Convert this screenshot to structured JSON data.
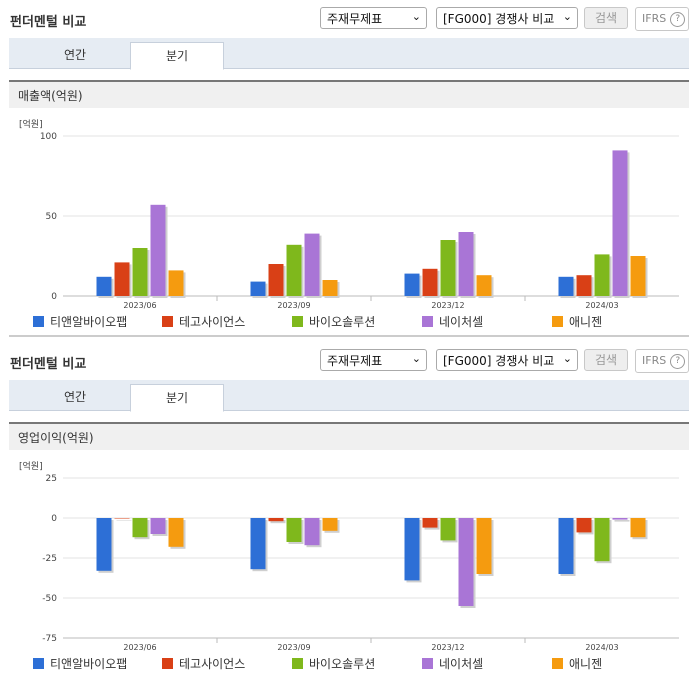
{
  "panels": [
    {
      "title": "펀더멘털 비교",
      "select1": "주재무제표",
      "select2": "[FG000] 경쟁사 비교",
      "search_label": "검색",
      "ifrs_label": "IFRS",
      "tabs": [
        {
          "label": "연간"
        },
        {
          "label": "분기"
        }
      ],
      "metric_label": "매출액(억원)"
    },
    {
      "title": "펀더멘털 비교",
      "select1": "주재무제표",
      "select2": "[FG000] 경쟁사 비교",
      "search_label": "검색",
      "ifrs_label": "IFRS",
      "tabs": [
        {
          "label": "연간"
        },
        {
          "label": "분기"
        }
      ],
      "metric_label": "영업이익(억원)"
    }
  ],
  "colors": [
    "#2d6fd6",
    "#d94016",
    "#7fb81c",
    "#a975d6",
    "#f59b0f"
  ],
  "chart_data": [
    {
      "type": "bar",
      "unit_label": "[억원]",
      "categories": [
        "2023/06",
        "2023/09",
        "2023/12",
        "2024/03"
      ],
      "ylim": [
        0,
        100
      ],
      "yticks": [
        0,
        50,
        100
      ],
      "series": [
        {
          "name": "티앤알바이오팹",
          "values": [
            12,
            9,
            14,
            12
          ]
        },
        {
          "name": "테고사이언스",
          "values": [
            21,
            20,
            17,
            13
          ]
        },
        {
          "name": "바이오솔루션",
          "values": [
            30,
            32,
            35,
            26
          ]
        },
        {
          "name": "네이처셀",
          "values": [
            57,
            39,
            40,
            91
          ]
        },
        {
          "name": "애니젠",
          "values": [
            16,
            10,
            13,
            25
          ]
        }
      ]
    },
    {
      "type": "bar",
      "unit_label": "[억원]",
      "categories": [
        "2023/06",
        "2023/09",
        "2023/12",
        "2024/03"
      ],
      "ylim": [
        -75,
        25
      ],
      "yticks": [
        25,
        0,
        -25,
        -50,
        -75
      ],
      "series": [
        {
          "name": "티앤알바이오팹",
          "values": [
            -33,
            -32,
            -39,
            -35
          ]
        },
        {
          "name": "테고사이언스",
          "values": [
            0,
            -2,
            -6,
            -9
          ]
        },
        {
          "name": "바이오솔루션",
          "values": [
            -12,
            -15,
            -14,
            -27
          ]
        },
        {
          "name": "네이처셀",
          "values": [
            -10,
            -17,
            -55,
            -1
          ]
        },
        {
          "name": "애니젠",
          "values": [
            -18,
            -8,
            -35,
            -12
          ]
        }
      ]
    }
  ]
}
